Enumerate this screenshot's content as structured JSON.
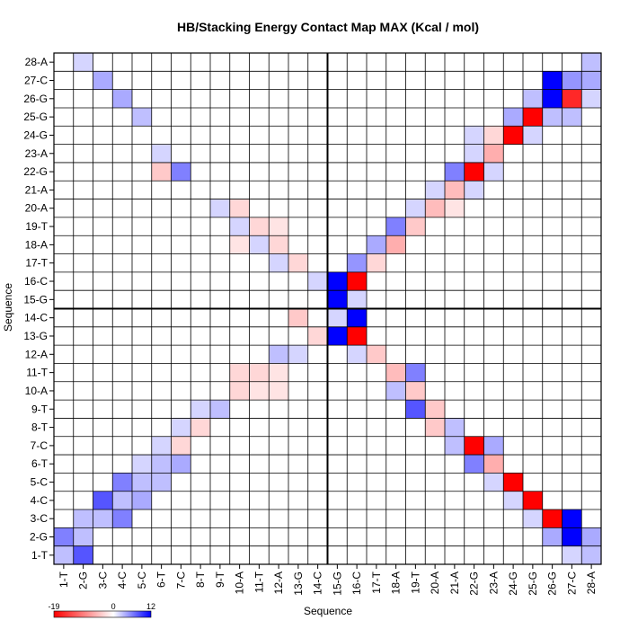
{
  "chart_data": {
    "type": "heatmap",
    "title": "HB/Stacking Energy Contact Map MAX (Kcal / mol)",
    "xlabel": "Sequence",
    "ylabel": "Sequence",
    "labels": [
      "1-T",
      "2-G",
      "3-C",
      "4-C",
      "5-C",
      "6-T",
      "7-C",
      "8-T",
      "9-T",
      "10-A",
      "11-T",
      "12-A",
      "13-G",
      "14-C",
      "15-G",
      "16-C",
      "17-T",
      "18-A",
      "19-T",
      "20-A",
      "21-A",
      "22-G",
      "23-A",
      "24-G",
      "25-G",
      "26-G",
      "27-C",
      "28-A"
    ],
    "colorbar": {
      "min": -19,
      "max": 12,
      "mid": 0,
      "tick_labels": [
        "-19",
        "0",
        "12"
      ],
      "low_color": "#ff0000",
      "mid_color": "#ffffff",
      "high_color": "#0000ff"
    },
    "separator_after_index": 14,
    "cells": [
      [
        28,
        28,
        3
      ],
      [
        27,
        27,
        5
      ],
      [
        27,
        26,
        12
      ],
      [
        27,
        28,
        4
      ],
      [
        26,
        26,
        12
      ],
      [
        26,
        27,
        -16
      ],
      [
        26,
        28,
        2
      ],
      [
        25,
        27,
        3
      ],
      [
        25,
        25,
        -19
      ],
      [
        24,
        24,
        -19
      ],
      [
        24,
        25,
        2
      ],
      [
        23,
        23,
        -6
      ],
      [
        23,
        22,
        2
      ],
      [
        22,
        22,
        -19
      ],
      [
        22,
        21,
        6
      ],
      [
        22,
        23,
        2
      ],
      [
        21,
        21,
        -5
      ],
      [
        21,
        22,
        2
      ],
      [
        20,
        20,
        -5
      ],
      [
        20,
        19,
        2
      ],
      [
        19,
        19,
        -4
      ],
      [
        19,
        18,
        6
      ],
      [
        18,
        18,
        -6
      ],
      [
        18,
        17,
        4
      ],
      [
        17,
        17,
        -3
      ],
      [
        17,
        16,
        5
      ],
      [
        16,
        16,
        -19
      ],
      [
        16,
        15,
        12
      ],
      [
        16,
        14,
        2
      ],
      [
        15,
        15,
        12
      ],
      [
        15,
        16,
        2
      ],
      [
        14,
        16,
        12
      ],
      [
        14,
        13,
        -4
      ],
      [
        14,
        15,
        2
      ],
      [
        13,
        15,
        12
      ],
      [
        13,
        16,
        -19
      ],
      [
        13,
        14,
        -3
      ],
      [
        12,
        17,
        -4
      ],
      [
        12,
        16,
        2
      ],
      [
        11,
        18,
        -5
      ],
      [
        11,
        19,
        6
      ],
      [
        10,
        18,
        3
      ],
      [
        10,
        19,
        -4
      ],
      [
        9,
        19,
        8
      ],
      [
        9,
        20,
        -4
      ],
      [
        8,
        20,
        -4
      ],
      [
        8,
        21,
        3
      ],
      [
        7,
        22,
        -19
      ],
      [
        7,
        21,
        3
      ],
      [
        7,
        23,
        4
      ],
      [
        6,
        22,
        6
      ],
      [
        6,
        23,
        -6
      ],
      [
        5,
        24,
        -19
      ],
      [
        5,
        23,
        2
      ],
      [
        4,
        25,
        -19
      ],
      [
        4,
        24,
        2
      ],
      [
        3,
        26,
        -19
      ],
      [
        3,
        27,
        12
      ],
      [
        3,
        25,
        2
      ],
      [
        2,
        27,
        12
      ],
      [
        2,
        26,
        4
      ],
      [
        1,
        28,
        3
      ],
      [
        1,
        27,
        2
      ],
      [
        24,
        22,
        2
      ],
      [
        24,
        23,
        -3
      ],
      [
        25,
        24,
        4
      ],
      [
        25,
        26,
        3
      ],
      [
        26,
        25,
        3
      ],
      [
        22,
        7,
        6
      ],
      [
        22,
        6,
        -4
      ],
      [
        26,
        4,
        4
      ],
      [
        27,
        3,
        4
      ],
      [
        28,
        2,
        2
      ],
      [
        25,
        5,
        3
      ],
      [
        23,
        6,
        2
      ],
      [
        20,
        10,
        -3
      ],
      [
        19,
        11,
        -3
      ],
      [
        18,
        12,
        -3
      ],
      [
        17,
        13,
        -3
      ],
      [
        12,
        12,
        3
      ],
      [
        11,
        11,
        -3
      ],
      [
        10,
        10,
        -3
      ],
      [
        9,
        9,
        3
      ],
      [
        8,
        8,
        -3
      ],
      [
        7,
        7,
        -3
      ],
      [
        6,
        6,
        3
      ],
      [
        5,
        5,
        3
      ],
      [
        4,
        4,
        3
      ],
      [
        3,
        3,
        3
      ],
      [
        2,
        2,
        3
      ],
      [
        1,
        1,
        3
      ],
      [
        1,
        2,
        8
      ],
      [
        2,
        1,
        6
      ],
      [
        3,
        2,
        3
      ],
      [
        4,
        3,
        8
      ],
      [
        5,
        4,
        6
      ],
      [
        3,
        4,
        6
      ],
      [
        4,
        5,
        4
      ],
      [
        11,
        12,
        -2
      ],
      [
        10,
        12,
        -2
      ],
      [
        12,
        13,
        2
      ],
      [
        19,
        10,
        2
      ],
      [
        18,
        11,
        2
      ],
      [
        17,
        12,
        2
      ],
      [
        20,
        9,
        2
      ],
      [
        21,
        20,
        2
      ],
      [
        20,
        21,
        -2
      ],
      [
        11,
        10,
        -3
      ],
      [
        10,
        11,
        -2
      ],
      [
        19,
        12,
        -2
      ],
      [
        18,
        10,
        -2
      ],
      [
        8,
        7,
        2
      ],
      [
        9,
        8,
        2
      ],
      [
        6,
        7,
        4
      ],
      [
        7,
        6,
        2
      ],
      [
        5,
        6,
        3
      ],
      [
        6,
        5,
        2
      ],
      [
        3,
        27,
        12
      ],
      [
        2,
        28,
        4
      ]
    ]
  }
}
